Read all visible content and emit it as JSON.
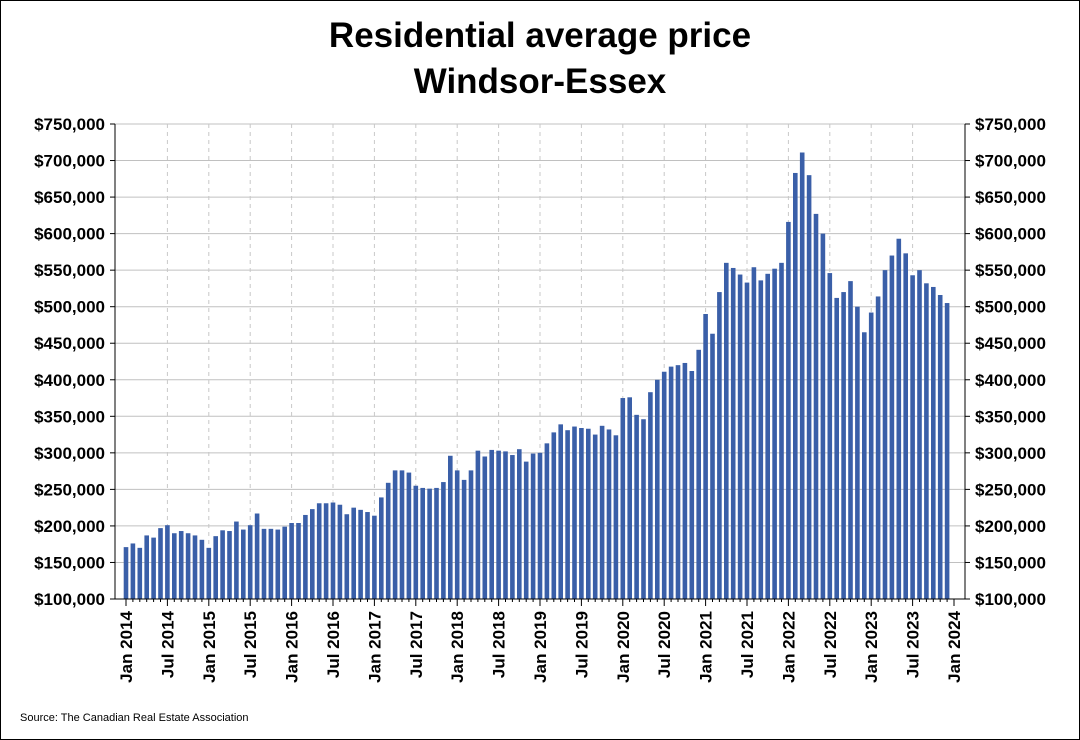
{
  "chart_data": {
    "type": "bar",
    "title": "Residential average price",
    "subtitle": "Windsor-Essex",
    "source": "Source: The Canadian Real Estate Association",
    "color": "#3a5fa8",
    "ylim": [
      100000,
      750000
    ],
    "y_ticks": [
      "$100,000",
      "$150,000",
      "$200,000",
      "$250,000",
      "$300,000",
      "$350,000",
      "$400,000",
      "$450,000",
      "$500,000",
      "$550,000",
      "$600,000",
      "$650,000",
      "$700,000",
      "$750,000"
    ],
    "x_ticks": [
      "Jan 2014",
      "Jul 2014",
      "Jan 2015",
      "Jul 2015",
      "Jan 2016",
      "Jul 2016",
      "Jan 2017",
      "Jul 2017",
      "Jan 2018",
      "Jul 2018",
      "Jan 2019",
      "Jul 2019",
      "Jan 2020",
      "Jul 2020",
      "Jan 2021",
      "Jul 2021",
      "Jan 2022",
      "Jul 2022",
      "Jan 2023",
      "Jul 2023",
      "Jan 2024"
    ],
    "start_month": "Jan 2014",
    "grid": {
      "horizontal": true,
      "vertical_dashed": true
    },
    "values": [
      171000,
      176000,
      170000,
      187000,
      184000,
      197000,
      201000,
      190000,
      193000,
      190000,
      187000,
      181000,
      170000,
      186000,
      194000,
      193000,
      206000,
      195000,
      201000,
      217000,
      196000,
      196000,
      195000,
      199000,
      204000,
      204000,
      215000,
      223000,
      231000,
      231000,
      232000,
      229000,
      216000,
      225000,
      222000,
      219000,
      214000,
      239000,
      259000,
      276000,
      276000,
      273000,
      255000,
      252000,
      251000,
      252000,
      260000,
      296000,
      276000,
      263000,
      276000,
      303000,
      295000,
      304000,
      303000,
      302000,
      297000,
      305000,
      288000,
      299000,
      300000,
      313000,
      328000,
      339000,
      331000,
      336000,
      334000,
      333000,
      325000,
      337000,
      332000,
      324000,
      375000,
      376000,
      352000,
      346000,
      383000,
      400000,
      411000,
      418000,
      420000,
      423000,
      412000,
      441000,
      490000,
      463000,
      520000,
      560000,
      553000,
      544000,
      533000,
      554000,
      536000,
      545000,
      552000,
      560000,
      616000,
      683000,
      711000,
      680000,
      627000,
      600000,
      546000,
      512000,
      520000,
      535000,
      500000,
      465000,
      492000,
      514000,
      550000,
      570000,
      593000,
      573000,
      543000,
      550000,
      532000,
      527000,
      516000,
      505000
    ]
  }
}
